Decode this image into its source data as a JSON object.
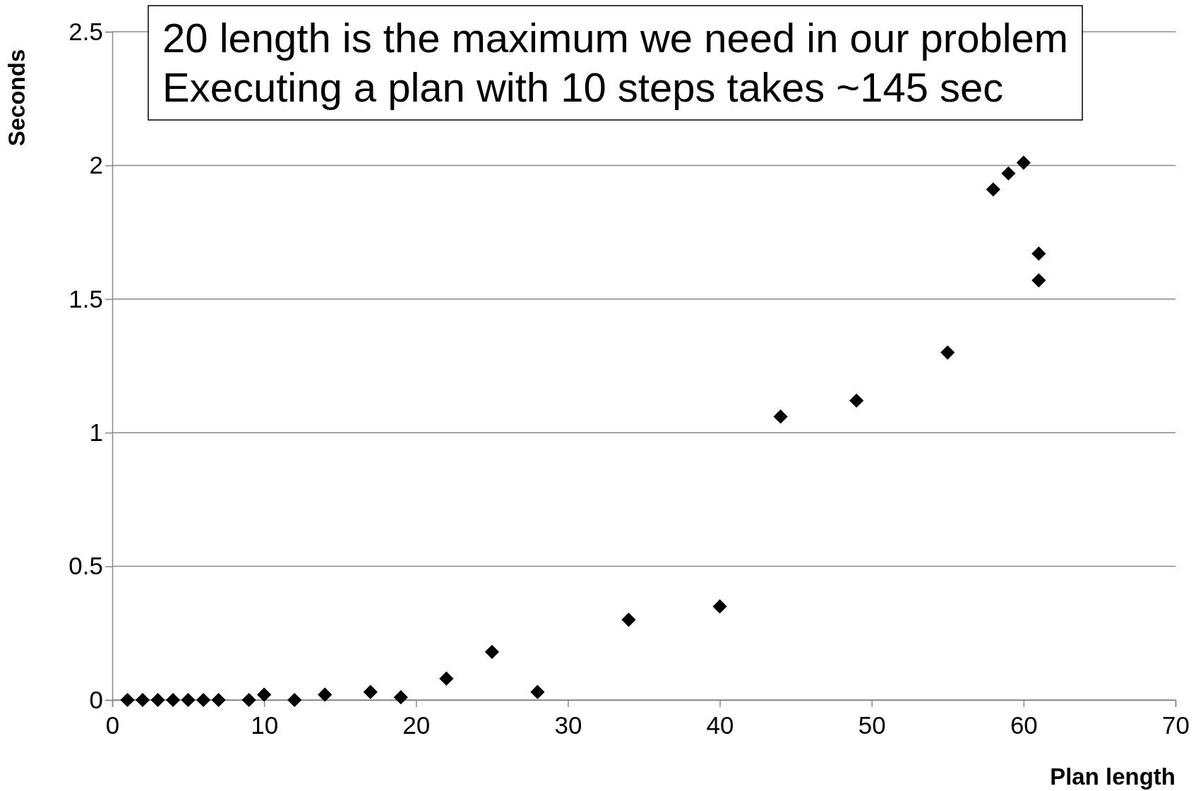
{
  "chart_data": {
    "type": "scatter",
    "xlabel": "Plan length",
    "ylabel": "Seconds",
    "annotations": [
      "20 length is the maximum we need in our problem\nExecuting a plan with 10 steps takes ~145 sec"
    ],
    "x": [
      1,
      2,
      3,
      4,
      5,
      6,
      7,
      9,
      10,
      12,
      14,
      17,
      19,
      22,
      25,
      28,
      34,
      40,
      44,
      49,
      55,
      58,
      59,
      60,
      61,
      61
    ],
    "series": [
      {
        "color": "#000000",
        "values": [
          0,
          0,
          0,
          0,
          0,
          0,
          0,
          0,
          0.02,
          0,
          0.02,
          0.03,
          0.01,
          0.08,
          0.18,
          0.03,
          0.3,
          0.35,
          1.06,
          1.12,
          1.3,
          1.91,
          1.97,
          2.01,
          1.67,
          1.57
        ]
      }
    ],
    "xlim": [
      0,
      70
    ],
    "xticks": [
      0,
      10,
      20,
      30,
      40,
      50,
      60,
      70
    ],
    "ylim": [
      0,
      2.5
    ],
    "yticks": [
      0,
      0.5,
      1,
      1.5,
      2,
      2.5
    ],
    "grid": "y",
    "marker": "diamond"
  }
}
